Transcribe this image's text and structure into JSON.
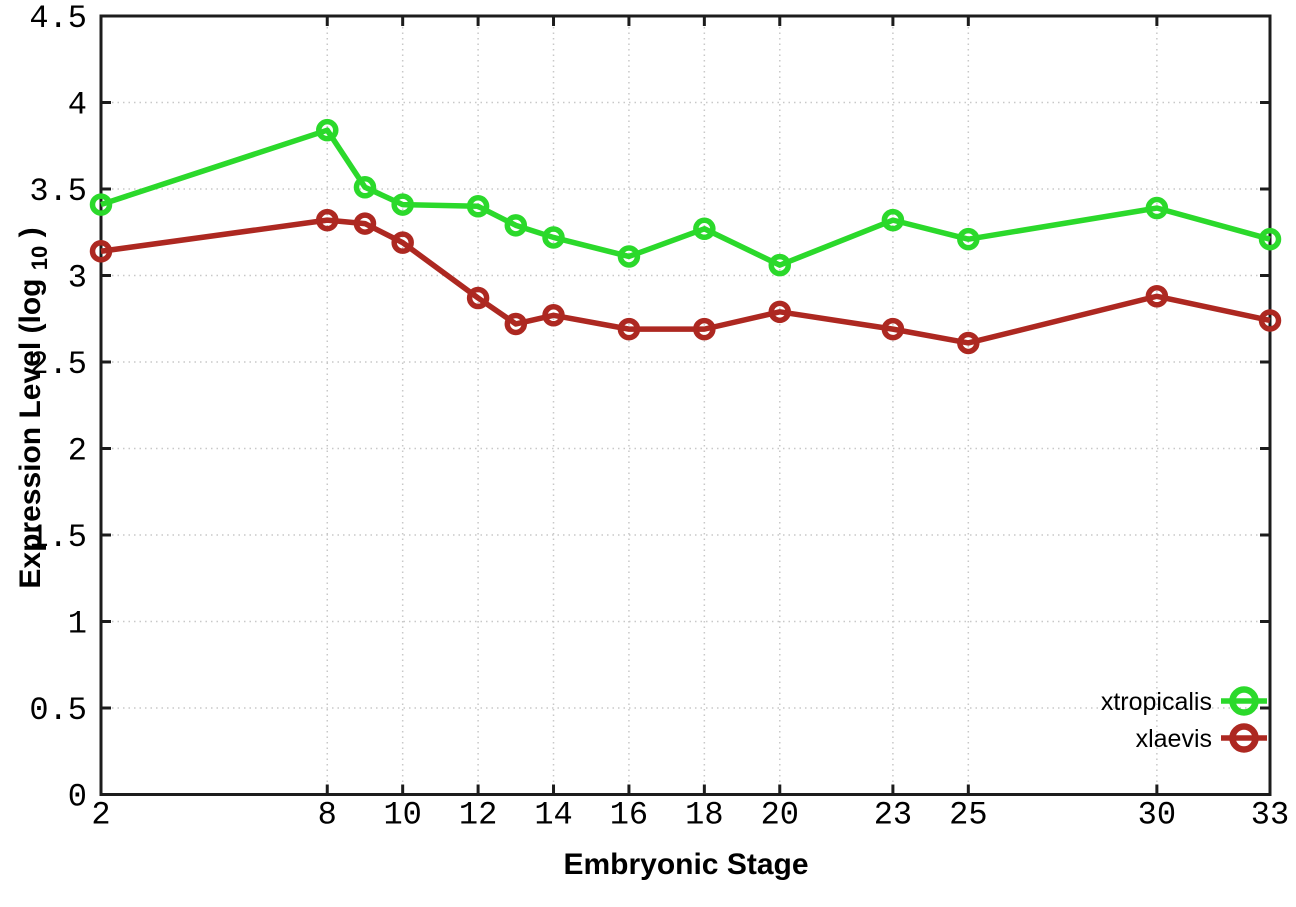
{
  "chart_data": {
    "type": "line",
    "title": "",
    "xlabel": "Embryonic Stage",
    "ylabel": {
      "prefix": "Expression Level (log",
      "subscript": "10",
      "suffix": ")"
    },
    "xlim": [
      2,
      33
    ],
    "ylim": [
      0,
      4.5
    ],
    "x_ticks": [
      2,
      8,
      10,
      12,
      14,
      16,
      18,
      20,
      23,
      25,
      30,
      33
    ],
    "y_ticks": [
      0,
      0.5,
      1,
      1.5,
      2,
      2.5,
      3,
      3.5,
      4,
      4.5
    ],
    "grid": true,
    "legend_position": "inside-bottom-right",
    "x": [
      2,
      8,
      9,
      10,
      12,
      13,
      14,
      16,
      18,
      20,
      23,
      25,
      30,
      33
    ],
    "series": [
      {
        "name": "xtropicalis",
        "color": "#2bd92b",
        "values": [
          3.41,
          3.84,
          3.51,
          3.41,
          3.4,
          3.29,
          3.22,
          3.11,
          3.27,
          3.06,
          3.32,
          3.21,
          3.39,
          3.21
        ]
      },
      {
        "name": "xlaevis",
        "color": "#ad2821",
        "values": [
          3.14,
          3.32,
          3.3,
          3.19,
          2.87,
          2.72,
          2.77,
          2.69,
          2.69,
          2.79,
          2.69,
          2.61,
          2.88,
          2.74
        ]
      }
    ],
    "colors": {
      "axis": "#1c1c1c",
      "grid": "#c8c8c8",
      "background": "#ffffff",
      "text": "#000000"
    }
  }
}
